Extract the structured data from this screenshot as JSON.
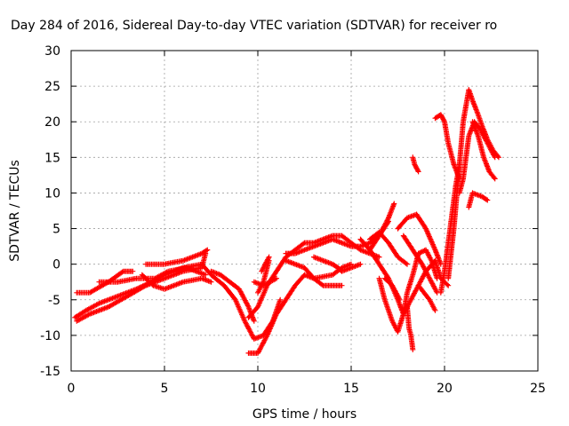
{
  "chart_data": {
    "type": "scatter",
    "title": "Day 284 of 2016, Sidereal Day-to-day VTEC variation (SDTVAR) for receiver ro",
    "xlabel": "GPS time / hours",
    "ylabel": "SDTVAR / TECUs",
    "xlim": [
      0,
      25
    ],
    "ylim": [
      -15,
      30
    ],
    "xticks": [
      "0",
      "5",
      "10",
      "15",
      "20",
      "25"
    ],
    "yticks": [
      "-15",
      "-10",
      "-5",
      "0",
      "5",
      "10",
      "15",
      "20",
      "25",
      "30"
    ],
    "grid": true,
    "marker": "plus",
    "color": "#ff0000",
    "tracks": [
      [
        [
          0.2,
          -7.5
        ],
        [
          0.8,
          -6.5
        ],
        [
          1.5,
          -5.5
        ],
        [
          2.5,
          -4.5
        ],
        [
          3.5,
          -3.5
        ],
        [
          4.3,
          -2.5
        ],
        [
          5,
          -1.5
        ],
        [
          6,
          -0.5
        ],
        [
          7,
          0
        ],
        [
          7.5,
          -1.5
        ],
        [
          8.2,
          -3
        ],
        [
          8.8,
          -5
        ],
        [
          9.3,
          -8
        ],
        [
          9.8,
          -10.5
        ],
        [
          10.3,
          -10
        ],
        [
          10.8,
          -8
        ],
        [
          11.2,
          -5
        ]
      ],
      [
        [
          0.3,
          -8
        ],
        [
          1,
          -7
        ],
        [
          2,
          -6
        ],
        [
          3,
          -4.5
        ],
        [
          4,
          -3
        ],
        [
          5,
          -2
        ],
        [
          6,
          -1
        ],
        [
          7,
          -0.5
        ],
        [
          7.2,
          1.5
        ]
      ],
      [
        [
          0.3,
          -4
        ],
        [
          1,
          -4
        ],
        [
          2,
          -2.5
        ],
        [
          2.8,
          -1
        ],
        [
          3.3,
          -1
        ]
      ],
      [
        [
          1.5,
          -2.5
        ],
        [
          2.5,
          -2.5
        ],
        [
          3.5,
          -2
        ],
        [
          4.5,
          -2
        ],
        [
          5.2,
          -1
        ],
        [
          6.2,
          -0.5
        ],
        [
          7.2,
          -1.5
        ]
      ],
      [
        [
          3.8,
          -1.5
        ],
        [
          4.4,
          -3
        ],
        [
          5,
          -3.5
        ],
        [
          6,
          -2.5
        ],
        [
          7,
          -2
        ],
        [
          7.5,
          -2.5
        ]
      ],
      [
        [
          4,
          0
        ],
        [
          5,
          0
        ],
        [
          6,
          0.5
        ],
        [
          7,
          1.5
        ],
        [
          7.3,
          2
        ]
      ],
      [
        [
          7.5,
          -1
        ],
        [
          8,
          -1.5
        ],
        [
          9,
          -3.5
        ],
        [
          9.5,
          -6
        ],
        [
          9.8,
          -8
        ]
      ],
      [
        [
          9.5,
          -12.5
        ],
        [
          10,
          -12.5
        ],
        [
          10.5,
          -10
        ],
        [
          11,
          -7
        ],
        [
          11.5,
          -5
        ],
        [
          12,
          -3
        ],
        [
          12.5,
          -1.5
        ],
        [
          13,
          -2
        ],
        [
          14,
          -1.5
        ],
        [
          14.5,
          -0.5
        ],
        [
          15,
          0
        ]
      ],
      [
        [
          9.5,
          -7.5
        ],
        [
          10,
          -6
        ],
        [
          10.5,
          -3
        ],
        [
          11,
          -1
        ],
        [
          11.5,
          1
        ],
        [
          12,
          2
        ],
        [
          12.5,
          3
        ],
        [
          13,
          3
        ],
        [
          14,
          4
        ],
        [
          14.5,
          4
        ],
        [
          15,
          3
        ],
        [
          15.5,
          2
        ],
        [
          16,
          1.5
        ],
        [
          16.5,
          1
        ]
      ],
      [
        [
          9.8,
          -2.5
        ],
        [
          10.3,
          -3
        ],
        [
          11,
          -2
        ]
      ],
      [
        [
          10,
          -4
        ],
        [
          10.3,
          -2.5
        ],
        [
          10.6,
          0.5
        ]
      ],
      [
        [
          10.2,
          -1
        ],
        [
          10.6,
          1
        ]
      ],
      [
        [
          11.5,
          0.5
        ],
        [
          12,
          0
        ],
        [
          12.5,
          -0.5
        ],
        [
          13,
          -2
        ],
        [
          13.5,
          -3
        ],
        [
          14,
          -3
        ],
        [
          14.5,
          -3
        ]
      ],
      [
        [
          11.5,
          1.5
        ],
        [
          12,
          1.5
        ],
        [
          12.5,
          2
        ],
        [
          13,
          2.5
        ],
        [
          14,
          3.5
        ],
        [
          14.5,
          3
        ],
        [
          15,
          2.5
        ],
        [
          15.5,
          2.5
        ],
        [
          16,
          3
        ],
        [
          16.5,
          4
        ],
        [
          17,
          6
        ]
      ],
      [
        [
          13,
          1
        ],
        [
          13.5,
          0.5
        ],
        [
          14,
          0
        ],
        [
          14.3,
          -0.5
        ],
        [
          14.5,
          -1
        ],
        [
          15,
          -0.5
        ],
        [
          15.5,
          0
        ]
      ],
      [
        [
          15.5,
          3.5
        ],
        [
          16,
          2
        ],
        [
          16.5,
          0
        ],
        [
          17,
          -2
        ],
        [
          17.5,
          -5
        ],
        [
          17.8,
          -7
        ],
        [
          18.2,
          -5
        ],
        [
          18.6,
          -3
        ],
        [
          19,
          -1
        ],
        [
          19.5,
          0.5
        ],
        [
          19.8,
          -2
        ],
        [
          20.2,
          -3
        ]
      ],
      [
        [
          16,
          3.5
        ],
        [
          16.5,
          4.5
        ],
        [
          17,
          3
        ],
        [
          17.5,
          1
        ],
        [
          18,
          0
        ]
      ],
      [
        [
          16,
          2
        ],
        [
          16.5,
          4
        ],
        [
          17,
          6.5
        ],
        [
          17.3,
          8.5
        ]
      ],
      [
        [
          16.5,
          -2
        ],
        [
          16.8,
          -5
        ],
        [
          17.2,
          -8
        ],
        [
          17.5,
          -9.5
        ],
        [
          17.8,
          -7
        ],
        [
          18,
          -4
        ],
        [
          18.3,
          -1.5
        ],
        [
          18.6,
          1.5
        ],
        [
          19,
          2
        ],
        [
          19.3,
          0.5
        ],
        [
          19.6,
          -2
        ]
      ],
      [
        [
          16.8,
          -2
        ],
        [
          17.2,
          -3
        ],
        [
          17.6,
          -5
        ]
      ],
      [
        [
          17.5,
          5
        ],
        [
          18,
          6.5
        ],
        [
          18.5,
          7
        ],
        [
          19,
          5
        ],
        [
          19.5,
          2
        ],
        [
          19.8,
          0
        ]
      ],
      [
        [
          17.8,
          4
        ],
        [
          18.3,
          2
        ],
        [
          18.8,
          0
        ],
        [
          19.2,
          -2
        ],
        [
          19.6,
          -4
        ]
      ],
      [
        [
          18,
          -6
        ],
        [
          18.1,
          -9
        ],
        [
          18.2,
          -10
        ],
        [
          18.3,
          -12
        ]
      ],
      [
        [
          18.3,
          15
        ],
        [
          18.4,
          14
        ],
        [
          18.6,
          13
        ]
      ],
      [
        [
          18.6,
          -3
        ],
        [
          18.9,
          -4
        ],
        [
          19.2,
          -5
        ],
        [
          19.5,
          -6.5
        ]
      ],
      [
        [
          19.5,
          20.5
        ],
        [
          19.8,
          21
        ],
        [
          20,
          20
        ],
        [
          20.2,
          17
        ],
        [
          20.5,
          14
        ],
        [
          20.8,
          12
        ]
      ],
      [
        [
          19.8,
          -4
        ],
        [
          20,
          -1
        ],
        [
          20.2,
          3
        ],
        [
          20.4,
          7
        ],
        [
          20.6,
          11
        ],
        [
          20.8,
          14
        ]
      ],
      [
        [
          20.2,
          -2
        ],
        [
          20.5,
          5
        ],
        [
          20.8,
          14
        ],
        [
          21,
          20
        ],
        [
          21.3,
          24.5
        ],
        [
          21.5,
          23
        ],
        [
          21.8,
          21
        ],
        [
          22,
          19.5
        ],
        [
          22.3,
          17.5
        ],
        [
          22.6,
          16
        ],
        [
          22.9,
          15
        ]
      ],
      [
        [
          20.8,
          10
        ],
        [
          21,
          12
        ],
        [
          21.3,
          18
        ],
        [
          21.6,
          20
        ],
        [
          21.9,
          19
        ],
        [
          22.3,
          17
        ],
        [
          22.7,
          15
        ]
      ],
      [
        [
          21.5,
          20
        ],
        [
          21.8,
          18
        ],
        [
          22.1,
          15
        ],
        [
          22.4,
          13
        ],
        [
          22.7,
          12
        ]
      ],
      [
        [
          21.3,
          8
        ],
        [
          21.5,
          10
        ],
        [
          22,
          9.5
        ],
        [
          22.3,
          9
        ]
      ]
    ]
  }
}
